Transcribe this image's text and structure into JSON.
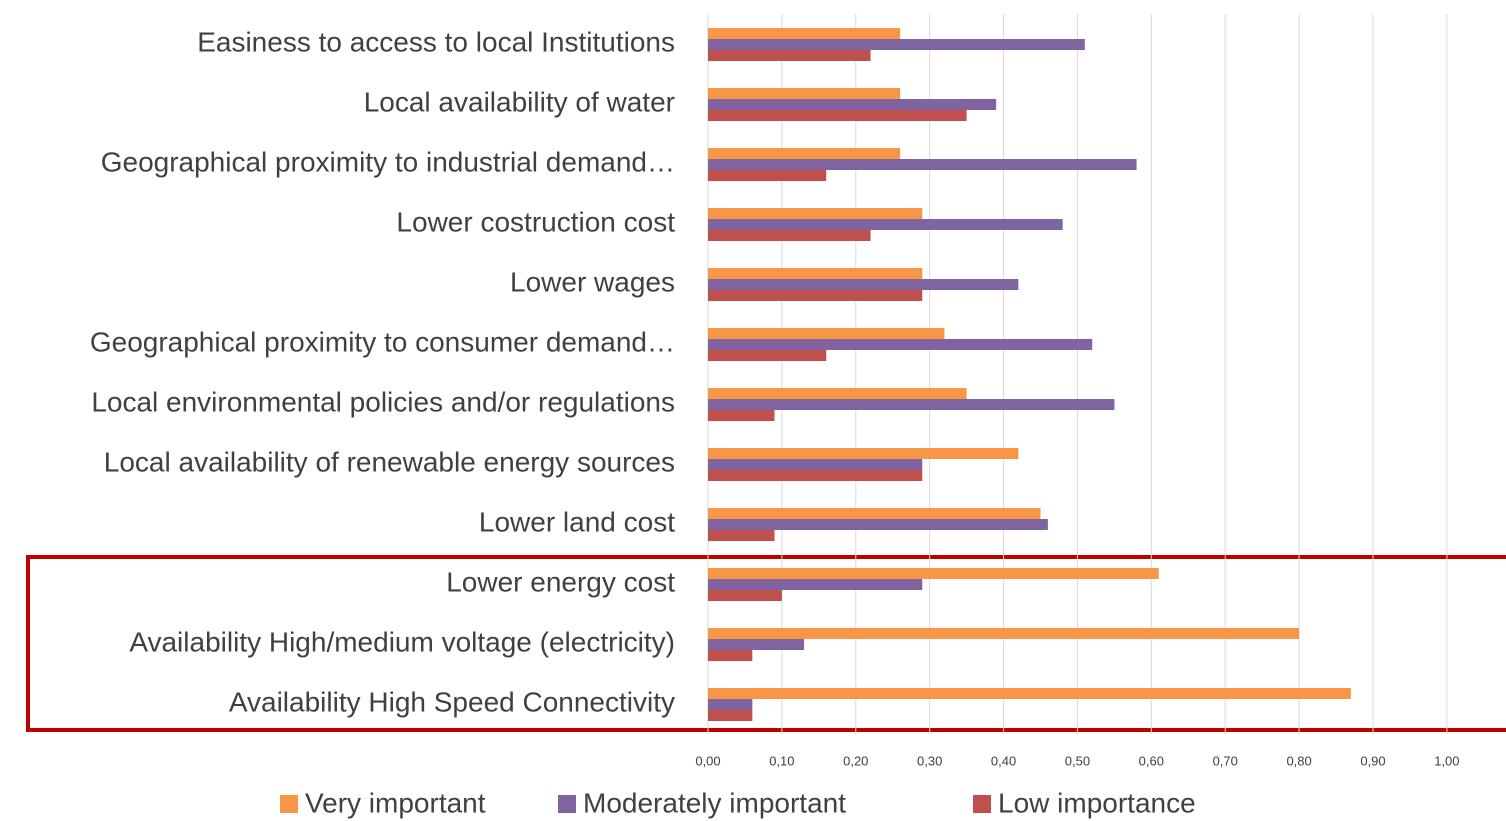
{
  "chart_data": {
    "type": "barh",
    "categories": [
      "Easiness to access to local Institutions",
      "Local availability of water",
      "Geographical proximity to industrial demand…",
      "Lower costruction cost",
      "Lower wages",
      "Geographical proximity to consumer demand…",
      "Local environmental policies and/or regulations",
      "Local availability of renewable energy sources",
      "Lower land cost",
      "Lower energy cost",
      "Availability High/medium voltage (electricity)",
      "Availability High Speed Connectivity"
    ],
    "series": [
      {
        "name": "Very important",
        "color": "#f79646",
        "values": [
          0.26,
          0.26,
          0.26,
          0.29,
          0.29,
          0.32,
          0.35,
          0.42,
          0.45,
          0.61,
          0.8,
          0.87
        ]
      },
      {
        "name": "Moderately important",
        "color": "#8064a2",
        "values": [
          0.51,
          0.39,
          0.58,
          0.48,
          0.42,
          0.52,
          0.55,
          0.29,
          0.46,
          0.29,
          0.13,
          0.06
        ]
      },
      {
        "name": "Low importance",
        "color": "#c0504d",
        "values": [
          0.22,
          0.35,
          0.16,
          0.22,
          0.29,
          0.16,
          0.09,
          0.29,
          0.09,
          0.1,
          0.06,
          0.06
        ]
      }
    ],
    "xlim": [
      0,
      1.08
    ],
    "xticks": [
      {
        "value": 0,
        "label": "0,00"
      },
      {
        "value": 0.1,
        "label": "0,10"
      },
      {
        "value": 0.2,
        "label": "0,20"
      },
      {
        "value": 0.3,
        "label": "0,30"
      },
      {
        "value": 0.4,
        "label": "0,40"
      },
      {
        "value": 0.5,
        "label": "0,50"
      },
      {
        "value": 0.6,
        "label": "0,60"
      },
      {
        "value": 0.7,
        "label": "0,70"
      },
      {
        "value": 0.8,
        "label": "0,80"
      },
      {
        "value": 0.9,
        "label": "0,90"
      },
      {
        "value": 1.0,
        "label": "1,00"
      }
    ],
    "grid": true,
    "legend": "bottom"
  }
}
